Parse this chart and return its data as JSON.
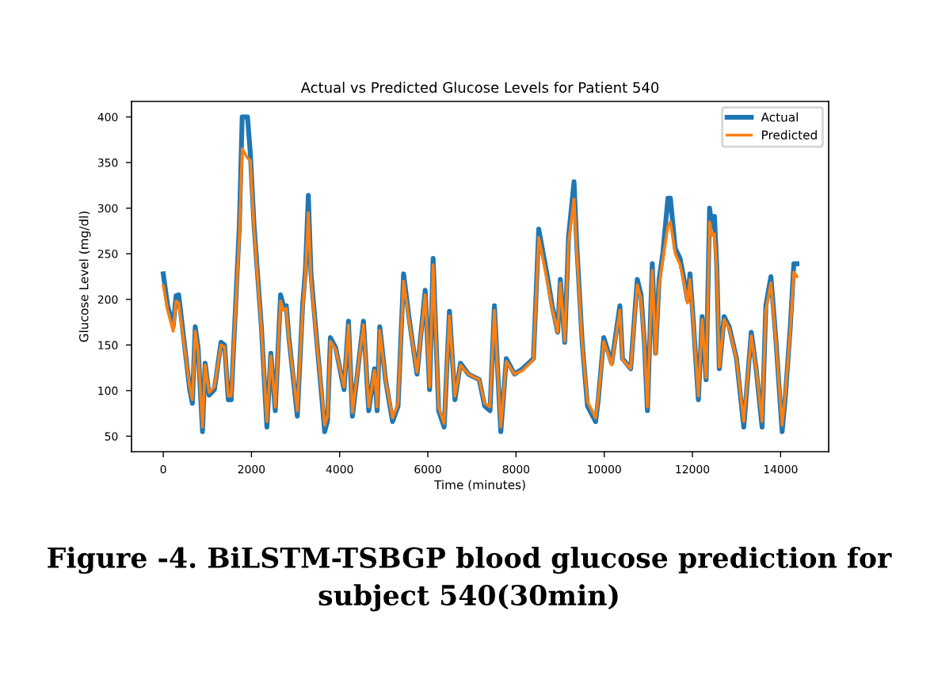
{
  "chart_data": {
    "type": "line",
    "title": "Actual vs Predicted Glucose Levels for Patient 540",
    "xlabel": "Time (minutes)",
    "ylabel": "Glucose Level (mg/dl)",
    "x": [
      0,
      100,
      225,
      290,
      350,
      475,
      600,
      660,
      725,
      790,
      890,
      950,
      1040,
      1160,
      1310,
      1390,
      1475,
      1540,
      1725,
      1790,
      1910,
      1975,
      2060,
      2225,
      2350,
      2440,
      2540,
      2660,
      2725,
      2790,
      2850,
      3040,
      3160,
      3225,
      3290,
      3350,
      3475,
      3600,
      3660,
      3725,
      3790,
      3910,
      4100,
      4200,
      4290,
      4540,
      4660,
      4790,
      4850,
      4910,
      5040,
      5200,
      5325,
      5450,
      5570,
      5755,
      5940,
      6040,
      6120,
      6245,
      6370,
      6490,
      6615,
      6740,
      6920,
      7165,
      7290,
      7410,
      7510,
      7595,
      7655,
      7780,
      7965,
      8150,
      8395,
      8515,
      8700,
      8820,
      8945,
      9005,
      9105,
      9190,
      9315,
      9375,
      9500,
      9620,
      9805,
      9865,
      9990,
      10170,
      10355,
      10415,
      10600,
      10750,
      10835,
      10910,
      10980,
      11090,
      11165,
      11245,
      11330,
      11445,
      11500,
      11610,
      11720,
      11810,
      11890,
      11945,
      12020,
      12135,
      12220,
      12310,
      12390,
      12445,
      12500,
      12555,
      12610,
      12720,
      12835,
      13000,
      13165,
      13335,
      13445,
      13580,
      13665,
      13780,
      13890,
      14035,
      14110,
      14220,
      14300,
      14370
    ],
    "series": [
      {
        "name": "Actual",
        "color": "#1f77b4",
        "values": [
          228,
          193,
          170,
          204,
          205,
          153,
          101,
          86,
          170,
          147,
          55,
          130,
          95,
          101,
          153,
          150,
          90,
          90,
          280,
          400,
          400,
          360,
          280,
          170,
          60,
          141,
          78,
          205,
          193,
          193,
          158,
          72,
          193,
          233,
          314,
          228,
          158,
          90,
          55,
          67,
          158,
          147,
          101,
          176,
          72,
          176,
          78,
          124,
          78,
          170,
          112,
          66,
          83,
          228,
          181,
          118,
          210,
          101,
          245,
          78,
          60,
          187,
          90,
          130,
          118,
          112,
          83,
          78,
          193,
          112,
          55,
          135,
          118,
          124,
          135,
          277,
          228,
          193,
          164,
          222,
          153,
          268,
          329,
          262,
          153,
          83,
          66,
          90,
          158,
          130,
          193,
          135,
          124,
          222,
          205,
          153,
          78,
          239,
          141,
          222,
          251,
          311,
          311,
          256,
          245,
          222,
          199,
          228,
          176,
          90,
          181,
          112,
          300,
          279,
          291,
          233,
          124,
          181,
          170,
          135,
          60,
          164,
          124,
          60,
          193,
          225,
          158,
          55,
          95,
          170,
          239,
          239
        ]
      },
      {
        "name": "Predicted",
        "color": "#ff7f0e",
        "values": [
          215,
          188,
          165,
          198,
          196,
          150,
          104,
          90,
          165,
          144,
          60,
          128,
          98,
          104,
          150,
          148,
          94,
          94,
          270,
          365,
          355,
          352,
          275,
          168,
          66,
          138,
          82,
          198,
          188,
          190,
          156,
          78,
          188,
          228,
          295,
          222,
          156,
          94,
          62,
          72,
          154,
          145,
          104,
          172,
          76,
          172,
          82,
          122,
          82,
          166,
          112,
          70,
          86,
          220,
          178,
          120,
          205,
          104,
          238,
          82,
          64,
          182,
          94,
          128,
          118,
          112,
          86,
          82,
          188,
          112,
          60,
          132,
          118,
          122,
          134,
          268,
          222,
          190,
          164,
          218,
          154,
          262,
          310,
          255,
          152,
          88,
          70,
          92,
          154,
          128,
          188,
          134,
          124,
          216,
          200,
          152,
          82,
          232,
          140,
          216,
          244,
          280,
          285,
          250,
          238,
          218,
          196,
          222,
          174,
          94,
          178,
          114,
          285,
          270,
          272,
          228,
          126,
          178,
          168,
          134,
          66,
          160,
          124,
          66,
          188,
          218,
          156,
          62,
          98,
          166,
          230,
          225
        ]
      }
    ],
    "xlim": [
      -720,
      15090
    ],
    "ylim": [
      33,
      417
    ],
    "xticks": [
      0,
      2000,
      4000,
      6000,
      8000,
      10000,
      12000,
      14000
    ],
    "yticks": [
      50,
      100,
      150,
      200,
      250,
      300,
      350,
      400
    ],
    "legend": "top right",
    "grid": false,
    "annotations": [
      "Figure -4. BiLSTM-TSBGP blood glucose prediction for subject 540(30min)"
    ]
  }
}
